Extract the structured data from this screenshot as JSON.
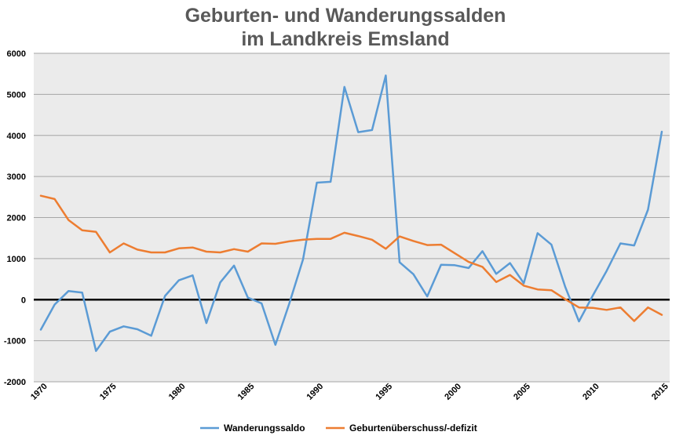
{
  "chart_data": {
    "type": "line",
    "title": [
      "Geburten- und Wanderungssalden",
      "im Landkreis Emsland"
    ],
    "xlabel": "",
    "ylabel": "",
    "xlim": [
      1970,
      2015
    ],
    "ylim": [
      -2000,
      6000
    ],
    "x_ticks": [
      "1970",
      "1975",
      "1980",
      "1985",
      "1990",
      "1995",
      "2000",
      "2005",
      "2010",
      "2015"
    ],
    "y_ticks": [
      "6000",
      "5000",
      "4000",
      "3000",
      "2000",
      "1000",
      "0",
      "-1000",
      "-2000"
    ],
    "grid": true,
    "plot_background": "#ebebeb",
    "zero_line_color": "#000000",
    "legend_position": "bottom",
    "x": [
      1970,
      1971,
      1972,
      1973,
      1974,
      1975,
      1976,
      1977,
      1978,
      1979,
      1980,
      1981,
      1982,
      1983,
      1984,
      1985,
      1986,
      1987,
      1988,
      1989,
      1990,
      1991,
      1992,
      1993,
      1994,
      1995,
      1996,
      1997,
      1998,
      1999,
      2000,
      2001,
      2002,
      2003,
      2004,
      2005,
      2006,
      2007,
      2008,
      2009,
      2010,
      2011,
      2012,
      2013,
      2014,
      2015
    ],
    "series": [
      {
        "name": "Wanderungssaldo",
        "color": "#5b9bd5",
        "values": [
          -730,
          -120,
          210,
          170,
          -1250,
          -780,
          -650,
          -720,
          -880,
          90,
          470,
          590,
          -570,
          420,
          830,
          50,
          -90,
          -1100,
          -100,
          980,
          2850,
          2870,
          5180,
          4080,
          4130,
          5460,
          910,
          620,
          80,
          850,
          840,
          770,
          1180,
          630,
          890,
          400,
          1620,
          1340,
          310,
          -530,
          100,
          700,
          1370,
          1320,
          2190,
          4090
        ]
      },
      {
        "name": "Geburtenüberschuss/-defizit",
        "color": "#ed7d31",
        "values": [
          2530,
          2450,
          1940,
          1690,
          1650,
          1150,
          1370,
          1220,
          1150,
          1150,
          1250,
          1270,
          1170,
          1150,
          1230,
          1170,
          1370,
          1360,
          1420,
          1460,
          1480,
          1480,
          1630,
          1550,
          1460,
          1240,
          1540,
          1430,
          1330,
          1340,
          1130,
          920,
          800,
          430,
          600,
          340,
          250,
          230,
          10,
          -190,
          -200,
          -250,
          -190,
          -520,
          -190,
          -370
        ]
      }
    ]
  }
}
